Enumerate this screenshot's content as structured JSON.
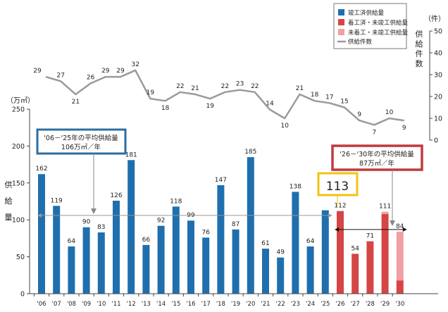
{
  "chart_data": {
    "type": "bar",
    "categories": [
      "'06",
      "'07",
      "'08",
      "'09",
      "'10",
      "'11",
      "'12",
      "'13",
      "'14",
      "'15",
      "'16",
      "'17",
      "'18",
      "'19",
      "'20",
      "'21",
      "'22",
      "'23",
      "'24",
      "'25",
      "'26",
      "'27",
      "'28",
      "'29",
      "'30"
    ],
    "series": [
      {
        "name": "竣工済供給量",
        "values": [
          162,
          119,
          64,
          90,
          83,
          126,
          181,
          66,
          92,
          118,
          99,
          76,
          147,
          87,
          185,
          61,
          49,
          138,
          64,
          113,
          0,
          0,
          0,
          0,
          0
        ]
      },
      {
        "name": "着工済・未竣工供給量",
        "values": [
          0,
          0,
          0,
          0,
          0,
          0,
          0,
          0,
          0,
          0,
          0,
          0,
          0,
          0,
          0,
          0,
          0,
          0,
          0,
          0,
          112,
          54,
          71,
          108,
          18
        ]
      },
      {
        "name": "未着工・未竣工供給量",
        "values": [
          0,
          0,
          0,
          0,
          0,
          0,
          0,
          0,
          0,
          0,
          0,
          0,
          0,
          0,
          0,
          0,
          0,
          0,
          0,
          0,
          0,
          0,
          0,
          3,
          66
        ]
      }
    ],
    "bar_totals": [
      162,
      119,
      64,
      90,
      83,
      126,
      181,
      66,
      92,
      118,
      99,
      76,
      147,
      87,
      185,
      61,
      49,
      138,
      64,
      113,
      112,
      54,
      71,
      111,
      84
    ],
    "line_series": {
      "name": "供給件数",
      "values": [
        29,
        27,
        21,
        26,
        29,
        29,
        32,
        19,
        18,
        22,
        21,
        19,
        22,
        23,
        22,
        14,
        10,
        21,
        18,
        17,
        15,
        9,
        7,
        10,
        9
      ]
    },
    "left_axis": {
      "unit": "（万㎡）",
      "label": "供給量",
      "ticks": [
        0,
        50,
        100,
        150,
        200,
        250
      ],
      "range": [
        0,
        250
      ]
    },
    "right_axis": {
      "unit": "（件）",
      "label": "供給件数",
      "ticks": [
        0,
        10,
        20,
        30,
        40,
        50
      ],
      "range": [
        0,
        50
      ]
    },
    "legend_position": "top-right",
    "annotations": {
      "avg_past_line1": "'06－'25年の平均供給量",
      "avg_past_line2": "106万㎡／年",
      "avg_future_line1": "'26－'30年の平均供給量",
      "avg_future_line2": "87万㎡／年",
      "highlight_value": "113",
      "avg_past_value": 106,
      "avg_future_value": 87
    },
    "colors": {
      "completed": "#1f6fae",
      "under_construction": "#d64545",
      "not_started": "#f0a0a4",
      "line": "#9a9a9a",
      "past_box": "#2a6fa3",
      "future_box": "#c0393f",
      "highlight_box": "#f2c313"
    }
  }
}
